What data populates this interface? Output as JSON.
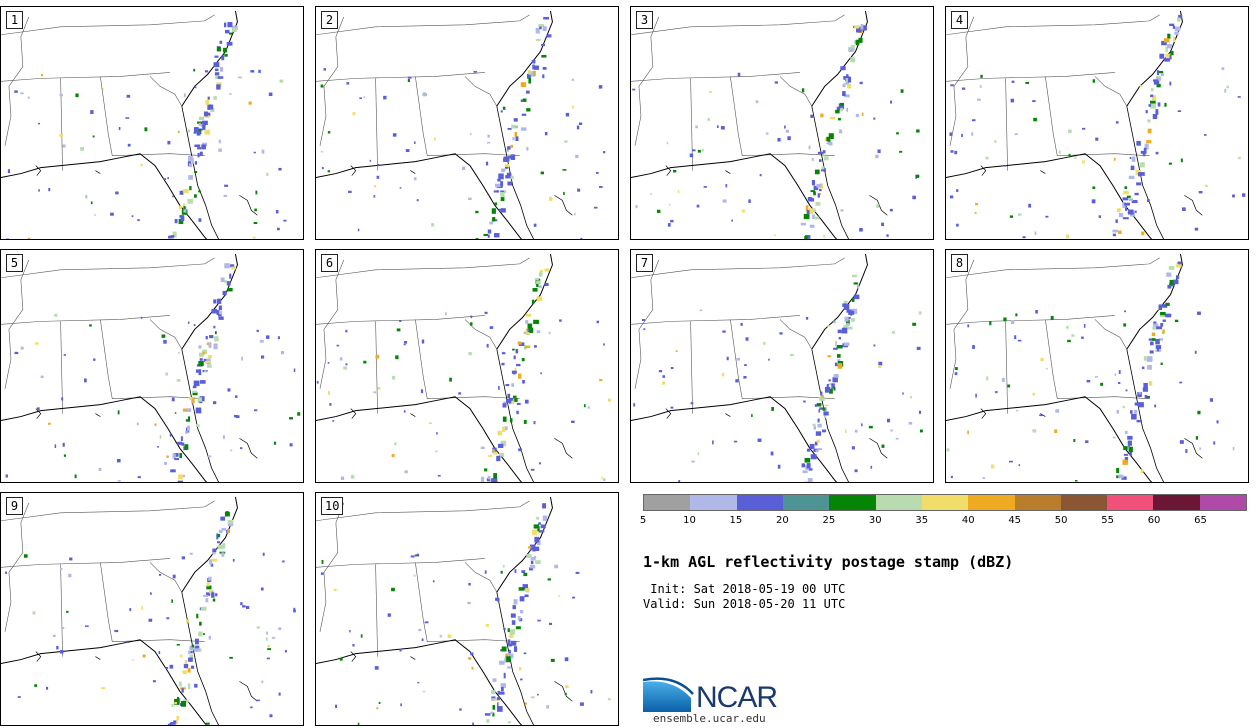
{
  "panels": [
    {
      "label": "1"
    },
    {
      "label": "2"
    },
    {
      "label": "3"
    },
    {
      "label": "4"
    },
    {
      "label": "5"
    },
    {
      "label": "6"
    },
    {
      "label": "7"
    },
    {
      "label": "8"
    },
    {
      "label": "9"
    },
    {
      "label": "10"
    }
  ],
  "colorbar": {
    "ticks": [
      "5",
      "10",
      "15",
      "20",
      "25",
      "30",
      "35",
      "40",
      "45",
      "50",
      "55",
      "60",
      "65"
    ],
    "colors": [
      "#a0a0a0",
      "#b0b8e8",
      "#5a5fd8",
      "#4f9495",
      "#068406",
      "#b8dcb0",
      "#f0dd6a",
      "#eeab22",
      "#b87e2c",
      "#8a5634",
      "#f0507a",
      "#6a1634",
      "#b04aa8"
    ]
  },
  "title": "1-km AGL reflectivity postage stamp (dBZ)",
  "init": " Init: Sat 2018-05-19 00 UTC",
  "valid": "Valid: Sun 2018-05-20 11 UTC",
  "logo": {
    "text": "NCAR",
    "url": "ensemble.ucar.edu"
  }
}
